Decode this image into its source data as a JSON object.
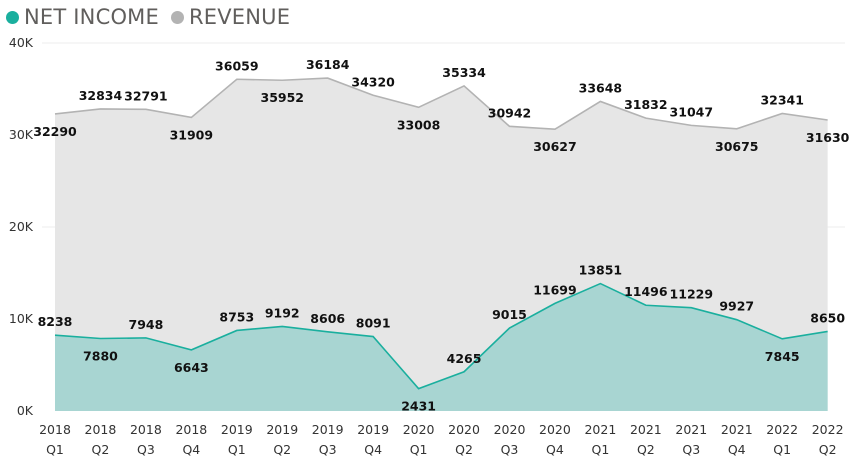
{
  "chart_data": {
    "type": "area",
    "legend_position": "top-left",
    "grid": true,
    "ylim": [
      0,
      40000
    ],
    "y_ticks": [
      {
        "value": 0,
        "label": "0K"
      },
      {
        "value": 10000,
        "label": "10K"
      },
      {
        "value": 20000,
        "label": "20K"
      },
      {
        "value": 30000,
        "label": "30K"
      },
      {
        "value": 40000,
        "label": "40K"
      }
    ],
    "categories": [
      {
        "year": "2018",
        "quarter": "Q1"
      },
      {
        "year": "2018",
        "quarter": "Q2"
      },
      {
        "year": "2018",
        "quarter": "Q3"
      },
      {
        "year": "2018",
        "quarter": "Q4"
      },
      {
        "year": "2019",
        "quarter": "Q1"
      },
      {
        "year": "2019",
        "quarter": "Q2"
      },
      {
        "year": "2019",
        "quarter": "Q3"
      },
      {
        "year": "2019",
        "quarter": "Q4"
      },
      {
        "year": "2020",
        "quarter": "Q1"
      },
      {
        "year": "2020",
        "quarter": "Q2"
      },
      {
        "year": "2020",
        "quarter": "Q3"
      },
      {
        "year": "2020",
        "quarter": "Q4"
      },
      {
        "year": "2021",
        "quarter": "Q1"
      },
      {
        "year": "2021",
        "quarter": "Q2"
      },
      {
        "year": "2021",
        "quarter": "Q3"
      },
      {
        "year": "2021",
        "quarter": "Q4"
      },
      {
        "year": "2022",
        "quarter": "Q1"
      },
      {
        "year": "2022",
        "quarter": "Q2"
      }
    ],
    "series": [
      {
        "name": "NET INCOME",
        "line_color": "#1aaf9e",
        "fill_color": "#a8d5d2",
        "values": [
          8238,
          7880,
          7948,
          6643,
          8753,
          9192,
          8606,
          8091,
          2431,
          4265,
          9015,
          11699,
          13851,
          11496,
          11229,
          9927,
          7845,
          8650
        ]
      },
      {
        "name": "REVENUE",
        "line_color": "#b3b3b3",
        "fill_color": "#e6e6e6",
        "values": [
          32290,
          32834,
          32791,
          31909,
          36059,
          35952,
          36184,
          34320,
          33008,
          35334,
          30942,
          30627,
          33648,
          31832,
          31047,
          30675,
          32341,
          31630
        ]
      }
    ]
  }
}
